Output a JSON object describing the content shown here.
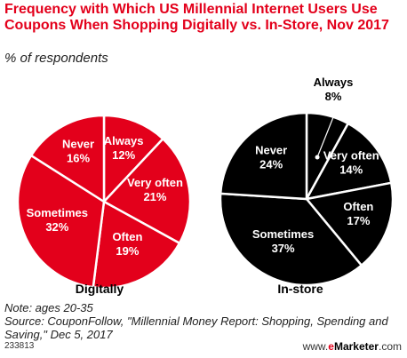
{
  "title": "Frequency with Which US Millennial Internet Users Use Coupons When Shopping Digitally vs. In-Store, Nov 2017",
  "subtitle": "% of respondents",
  "note": "Note: ages 20-35",
  "source": "Source: CouponFollow, \"Millennial Money Report: Shopping, Spending and Saving,\" Dec 5, 2017",
  "chart_id": "233813",
  "brand": {
    "prefix": "www.",
    "e": "e",
    "marketer": "Marketer",
    "suffix": ".com"
  },
  "colors": {
    "digital": "#e3001b",
    "instore": "#000000",
    "divider": "#ffffff",
    "title": "#e3001b"
  },
  "chart_data": [
    {
      "type": "pie",
      "title": "Digitally",
      "slices": [
        {
          "label": "Always",
          "value": 12
        },
        {
          "label": "Very often",
          "value": 21
        },
        {
          "label": "Often",
          "value": 19
        },
        {
          "label": "Sometimes",
          "value": 32
        },
        {
          "label": "Never",
          "value": 16
        }
      ]
    },
    {
      "type": "pie",
      "title": "In-store",
      "slices": [
        {
          "label": "Always",
          "value": 8
        },
        {
          "label": "Very often",
          "value": 14
        },
        {
          "label": "Often",
          "value": 17
        },
        {
          "label": "Sometimes",
          "value": 37
        },
        {
          "label": "Never",
          "value": 24
        }
      ]
    }
  ]
}
